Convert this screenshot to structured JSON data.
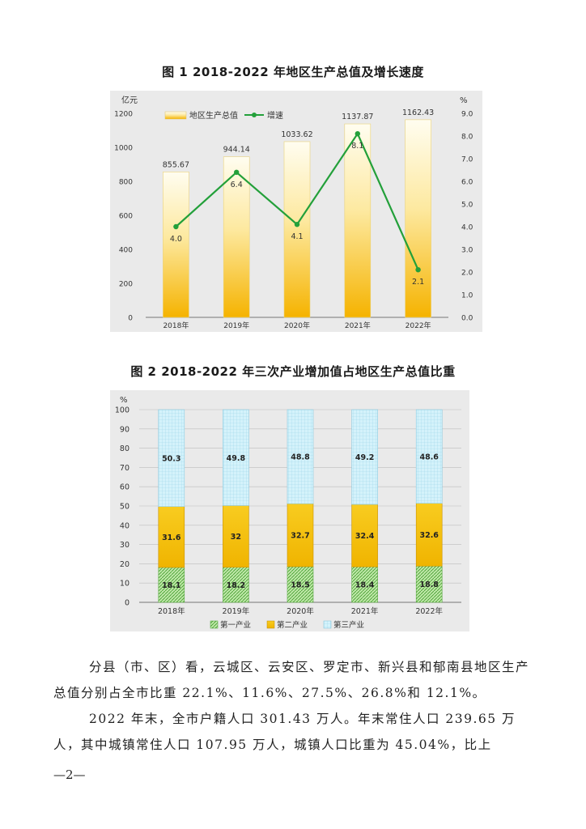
{
  "figure1": {
    "title": "图 1  2018-2022 年地区生产总值及增长速度",
    "left_unit": "亿元",
    "right_unit": "%",
    "legend_bar": "地区生产总值",
    "legend_line": "增速",
    "colors": {
      "bar_top": "#fffbe6",
      "bar_bottom": "#f7b500",
      "line": "#23a03a"
    }
  },
  "figure2": {
    "title": "图 2  2018-2022 年三次产业增加值占地区生产总值比重",
    "unit": "%",
    "legend": [
      "第一产业",
      "第二产业",
      "第三产业"
    ],
    "colors": {
      "primary": "#8fd07a",
      "secondary": "#f5c000",
      "tertiary": "#cdeffa"
    }
  },
  "paragraphs": [
    "分县（市、区）看，云城区、云安区、罗定市、新兴县和郁南县地区生产总值分别占全市比重 22.1%、11.6%、27.5%、26.8%和 12.1%。",
    "2022 年末，全市户籍人口 301.43 万人。年末常住人口 239.65 万人，其中城镇常住人口 107.95 万人，城镇人口比重为 45.04%，比上"
  ],
  "page_number": "—2—",
  "chart_data": [
    {
      "type": "bar",
      "categories": [
        "2018年",
        "2019年",
        "2020年",
        "2021年",
        "2022年"
      ],
      "series": [
        {
          "name": "地区生产总值",
          "values": [
            855.67,
            944.14,
            1033.62,
            1137.87,
            1162.43
          ],
          "axis": "left"
        },
        {
          "name": "增速",
          "type": "line",
          "values": [
            4.0,
            6.4,
            4.1,
            8.1,
            2.1
          ],
          "axis": "right"
        }
      ],
      "title": "图 1  2018-2022 年地区生产总值及增长速度",
      "ylabel": "亿元",
      "y2label": "%",
      "ylim": [
        0,
        1200
      ],
      "y2lim": [
        0.0,
        9.0
      ],
      "yticks": [
        "0",
        "200",
        "400",
        "600",
        "800",
        "1000",
        "1200"
      ],
      "y2ticks": [
        "0.0",
        "1.0",
        "2.0",
        "3.0",
        "4.0",
        "5.0",
        "6.0",
        "7.0",
        "8.0",
        "9.0"
      ],
      "bar_labels": [
        "855.67",
        "944.14",
        "1033.62",
        "1137.87",
        "1162.43"
      ],
      "line_labels": [
        "4.0",
        "6.4",
        "4.1",
        "8.1",
        "2.1"
      ],
      "legend": "top-left"
    },
    {
      "type": "bar",
      "stacked": true,
      "categories": [
        "2018年",
        "2019年",
        "2020年",
        "2021年",
        "2022年"
      ],
      "series": [
        {
          "name": "第一产业",
          "values": [
            18.1,
            18.2,
            18.5,
            18.4,
            18.8
          ],
          "labels": [
            "18.1",
            "18.2",
            "18.5",
            "18.4",
            "18.8"
          ]
        },
        {
          "name": "第二产业",
          "values": [
            31.6,
            32,
            32.7,
            32.4,
            32.6
          ],
          "labels": [
            "31.6",
            "32",
            "32.7",
            "32.4",
            "32.6"
          ]
        },
        {
          "name": "第三产业",
          "values": [
            50.3,
            49.8,
            48.8,
            49.2,
            48.6
          ],
          "labels": [
            "50.3",
            "49.8",
            "48.8",
            "49.2",
            "48.6"
          ]
        }
      ],
      "title": "图 2  2018-2022 年三次产业增加值占地区生产总值比重",
      "ylabel": "%",
      "ylim": [
        0,
        100
      ],
      "yticks": [
        "0",
        "10",
        "20",
        "30",
        "40",
        "50",
        "60",
        "70",
        "80",
        "90",
        "100"
      ],
      "grid": true,
      "legend": "bottom"
    }
  ]
}
